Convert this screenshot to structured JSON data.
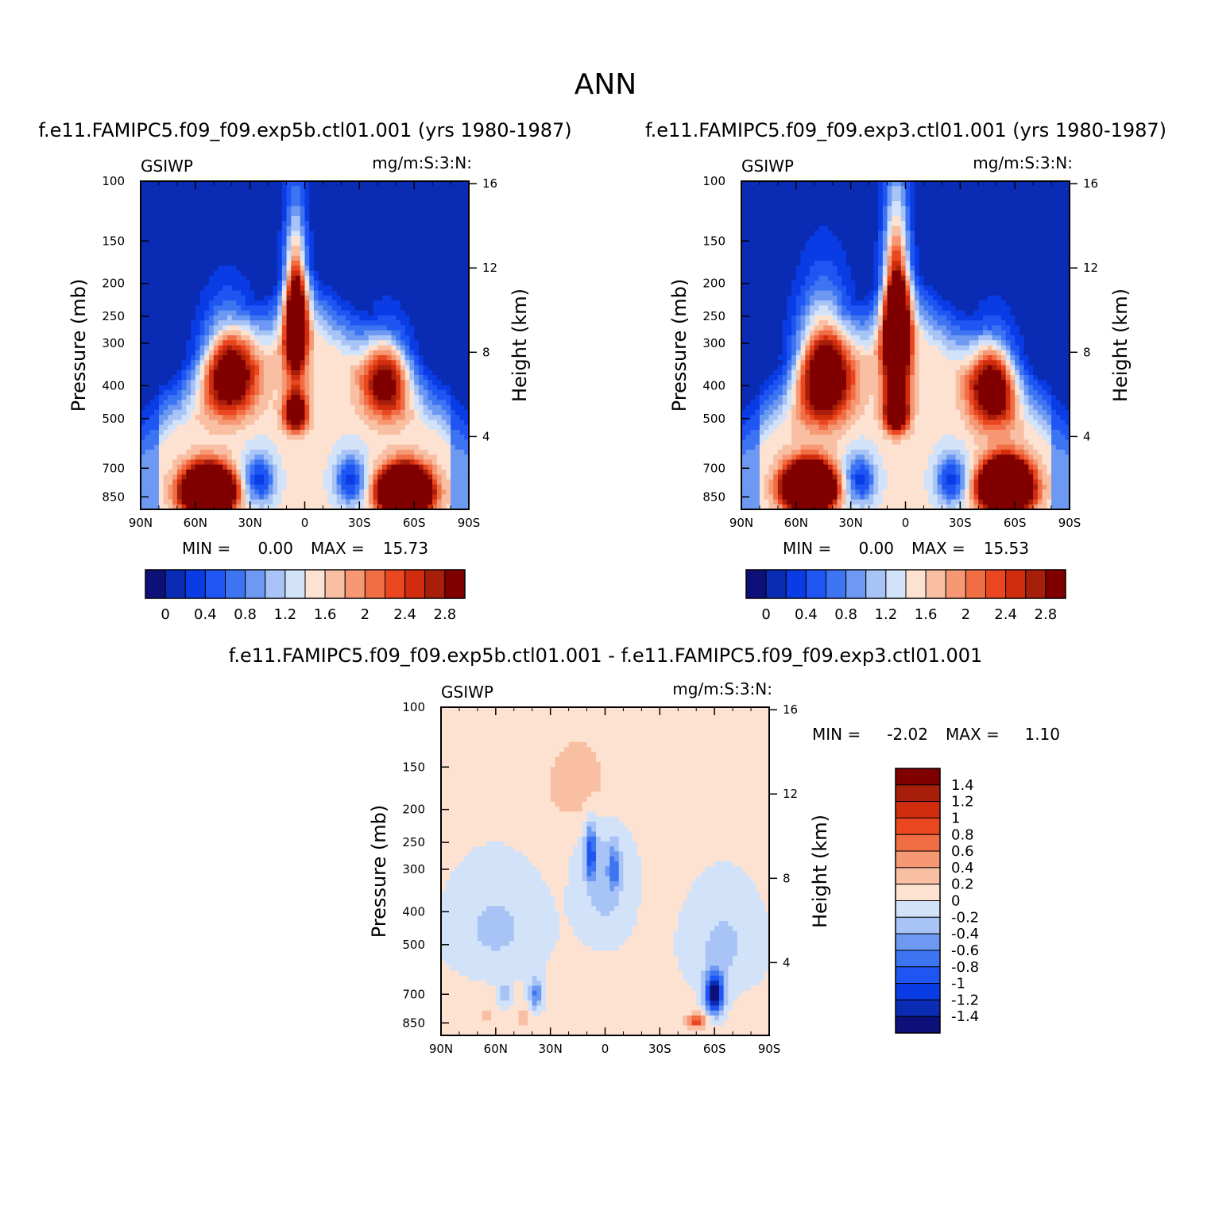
{
  "figure_title": "ANN",
  "chart_data": [
    {
      "type": "heatmap",
      "title": "f.e11.FAMIPC5.f09_f09.exp5b.ctl01.001 (yrs 1980-1987)",
      "left_label": "GSIWP",
      "right_label": "mg/m:S:3:N:",
      "ylabel": "Pressure (mb)",
      "ylabel_right": "Height (km)",
      "x_ticks": [
        "90N",
        "60N",
        "30N",
        "0",
        "30S",
        "60S",
        "90S"
      ],
      "y_ticks": [
        "100",
        "150",
        "200",
        "250",
        "300",
        "400",
        "500",
        "700",
        "850"
      ],
      "height_ticks": [
        "16",
        "12",
        "8",
        "4"
      ],
      "xlim": [
        90,
        -90
      ],
      "ylim": [
        100,
        925
      ],
      "min_label": "MIN =",
      "min_value": "0.00",
      "max_label": "MAX =",
      "max_value": "15.73",
      "colorbar_labels": [
        "0",
        "0.4",
        "0.8",
        "1.2",
        "1.6",
        "2",
        "2.4",
        "2.8"
      ],
      "features": [
        {
          "lat": 5,
          "p": 250,
          "value": 3.4,
          "dlat": 6,
          "dp": 110
        },
        {
          "lat": 5,
          "p": 480,
          "value": 2.4,
          "dlat": 6,
          "dp": 60
        },
        {
          "lat": 42,
          "p": 360,
          "value": 2.5,
          "dlat": 14,
          "dp": 110
        },
        {
          "lat": -45,
          "p": 380,
          "value": 2.0,
          "dlat": 12,
          "dp": 100
        },
        {
          "lat": 53,
          "p": 820,
          "value": 7,
          "dlat": 12,
          "dp": 110
        },
        {
          "lat": -55,
          "p": 820,
          "value": 7,
          "dlat": 12,
          "dp": 110
        }
      ]
    },
    {
      "type": "heatmap",
      "title": "f.e11.FAMIPC5.f09_f09.exp3.ctl01.001 (yrs 1980-1987)",
      "left_label": "GSIWP",
      "right_label": "mg/m:S:3:N:",
      "ylabel": "Pressure (mb)",
      "ylabel_right": "Height (km)",
      "x_ticks": [
        "90N",
        "60N",
        "30N",
        "0",
        "30S",
        "60S",
        "90S"
      ],
      "y_ticks": [
        "100",
        "150",
        "200",
        "250",
        "300",
        "400",
        "500",
        "700",
        "850"
      ],
      "height_ticks": [
        "16",
        "12",
        "8",
        "4"
      ],
      "xlim": [
        90,
        -90
      ],
      "ylim": [
        100,
        925
      ],
      "min_label": "MIN =",
      "min_value": "0.00",
      "max_label": "MAX =",
      "max_value": "15.53",
      "colorbar_labels": [
        "0",
        "0.4",
        "0.8",
        "1.2",
        "1.6",
        "2",
        "2.4",
        "2.8"
      ],
      "features": [
        {
          "lat": 5,
          "p": 270,
          "value": 4.0,
          "dlat": 7,
          "dp": 140
        },
        {
          "lat": 5,
          "p": 480,
          "value": 2.8,
          "dlat": 6,
          "dp": 60
        },
        {
          "lat": 45,
          "p": 360,
          "value": 2.9,
          "dlat": 14,
          "dp": 130
        },
        {
          "lat": -48,
          "p": 400,
          "value": 2.4,
          "dlat": 12,
          "dp": 110
        },
        {
          "lat": 53,
          "p": 800,
          "value": 7,
          "dlat": 12,
          "dp": 110
        },
        {
          "lat": -55,
          "p": 800,
          "value": 7,
          "dlat": 12,
          "dp": 120
        }
      ]
    },
    {
      "type": "heatmap",
      "title": "f.e11.FAMIPC5.f09_f09.exp5b.ctl01.001 - f.e11.FAMIPC5.f09_f09.exp3.ctl01.001",
      "left_label": "GSIWP",
      "right_label": "mg/m:S:3:N:",
      "ylabel": "Pressure (mb)",
      "ylabel_right": "Height (km)",
      "x_ticks": [
        "90N",
        "60N",
        "30N",
        "0",
        "30S",
        "60S",
        "90S"
      ],
      "y_ticks": [
        "100",
        "150",
        "200",
        "250",
        "300",
        "400",
        "500",
        "700",
        "850"
      ],
      "height_ticks": [
        "16",
        "12",
        "8",
        "4"
      ],
      "xlim": [
        90,
        -90
      ],
      "ylim": [
        100,
        925
      ],
      "min_label": "MIN =",
      "min_value": "-2.02",
      "max_label": "MAX =",
      "max_value": "1.10",
      "colorbar_labels": [
        "1.4",
        "1.2",
        "1",
        "0.8",
        "0.6",
        "0.4",
        "0.2",
        "0",
        "-0.2",
        "-0.4",
        "-0.6",
        "-0.8",
        "-1",
        "-1.2",
        "-1.4"
      ],
      "features": [
        {
          "lat": 8,
          "p": 270,
          "value": -0.9,
          "dlat": 3,
          "dp": 50
        },
        {
          "lat": -5,
          "p": 300,
          "value": -0.6,
          "dlat": 3,
          "dp": 40
        },
        {
          "lat": 0,
          "p": 320,
          "value": -0.35,
          "dlat": 14,
          "dp": 150
        },
        {
          "lat": -60,
          "p": 700,
          "value": -1.7,
          "dlat": 5,
          "dp": 90
        },
        {
          "lat": -50,
          "p": 840,
          "value": 0.9,
          "dlat": 5,
          "dp": 40
        },
        {
          "lat": 38,
          "p": 700,
          "value": -0.7,
          "dlat": 4,
          "dp": 70
        },
        {
          "lat": 55,
          "p": 700,
          "value": -0.45,
          "dlat": 3,
          "dp": 60
        },
        {
          "lat": 45,
          "p": 820,
          "value": 0.35,
          "dlat": 4,
          "dp": 50
        },
        {
          "lat": 65,
          "p": 820,
          "value": 0.25,
          "dlat": 3,
          "dp": 50
        },
        {
          "lat": 10,
          "p": 170,
          "value": 0.3,
          "dlat": 25,
          "dp": 60
        },
        {
          "lat": 60,
          "p": 450,
          "value": -0.3,
          "dlat": 25,
          "dp": 150
        },
        {
          "lat": -65,
          "p": 500,
          "value": -0.3,
          "dlat": 20,
          "dp": 160
        }
      ]
    }
  ]
}
